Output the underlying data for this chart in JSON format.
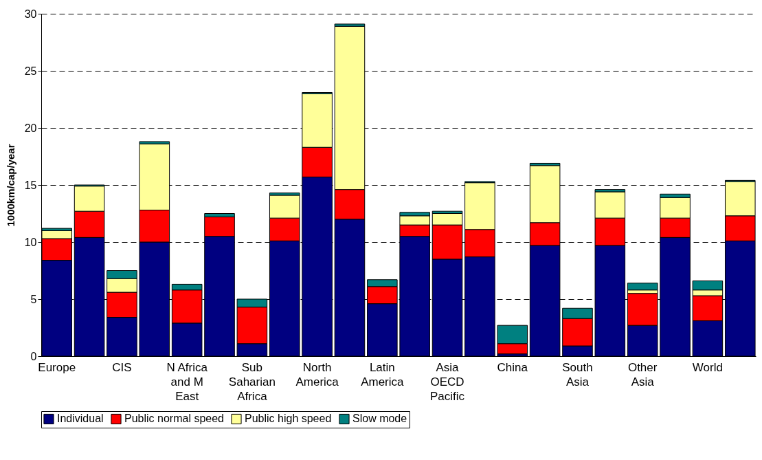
{
  "chart_data": {
    "type": "bar",
    "stacked": true,
    "ylabel": "1000km/cap/year",
    "categories": [
      "Europe",
      null,
      "CIS",
      null,
      "N Africa and M East",
      null,
      "Sub Saharian Africa",
      null,
      "North America",
      null,
      "Latin America",
      null,
      "Asia OECD Pacific",
      null,
      "China",
      null,
      "South Asia",
      null,
      "Other Asia",
      null,
      "World",
      null
    ],
    "series": [
      {
        "name": "Individual",
        "color": "#000080",
        "values": [
          8.4,
          10.4,
          3.4,
          10.0,
          2.9,
          10.5,
          1.1,
          10.1,
          15.7,
          12.0,
          4.6,
          10.5,
          8.5,
          8.7,
          0.2,
          9.7,
          0.9,
          9.7,
          2.7,
          10.4,
          3.1,
          10.1
        ]
      },
      {
        "name": "Public normal speed",
        "color": "#ff0000",
        "values": [
          1.9,
          2.3,
          2.2,
          2.8,
          2.9,
          1.7,
          3.2,
          2.0,
          2.6,
          2.6,
          1.5,
          1.0,
          3.0,
          2.4,
          0.9,
          2.0,
          2.4,
          2.4,
          2.8,
          1.7,
          2.2,
          2.2
        ]
      },
      {
        "name": "Public high speed",
        "color": "#ffff99",
        "values": [
          0.7,
          2.2,
          1.2,
          5.8,
          null,
          0,
          0,
          2.0,
          4.7,
          14.3,
          0,
          0.8,
          1.0,
          4.1,
          0,
          5.0,
          null,
          2.3,
          0.3,
          1.8,
          0.5,
          3.0
        ]
      },
      {
        "name": "Slow mode",
        "color": "#008080",
        "values": [
          0.2,
          0.1,
          0.7,
          0.2,
          0.5,
          0.3,
          0.7,
          0.2,
          0.1,
          0.2,
          0.6,
          0.3,
          0.2,
          0.1,
          1.6,
          0.2,
          0.9,
          0.2,
          0.6,
          0.3,
          0.8,
          0.1
        ]
      }
    ],
    "ylim": [
      0,
      30
    ],
    "yticks": [
      0,
      5,
      10,
      15,
      20,
      25,
      30
    ],
    "grid": "y",
    "legend": "bottom"
  }
}
